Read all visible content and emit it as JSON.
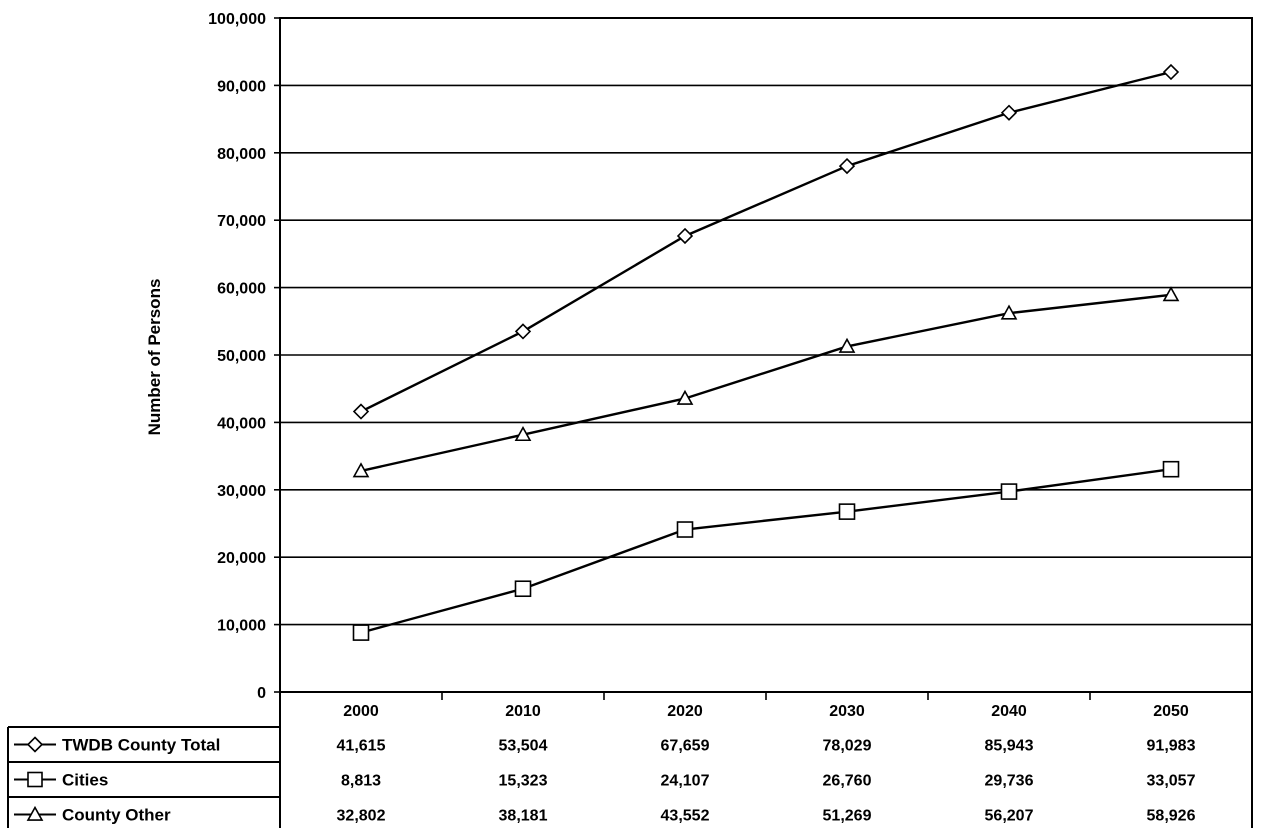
{
  "chart_data": {
    "type": "line",
    "title": "",
    "xlabel": "",
    "ylabel": "Number of Persons",
    "ylim": [
      0,
      100000
    ],
    "yticks": [
      "0",
      "10,000",
      "20,000",
      "30,000",
      "40,000",
      "50,000",
      "60,000",
      "70,000",
      "80,000",
      "90,000",
      "100,000"
    ],
    "ytick_values": [
      0,
      10000,
      20000,
      30000,
      40000,
      50000,
      60000,
      70000,
      80000,
      90000,
      100000
    ],
    "categories": [
      "2000",
      "2010",
      "2020",
      "2030",
      "2040",
      "2050"
    ],
    "grid": true,
    "legend": "data-table-below",
    "series": [
      {
        "name": "TWDB County Total",
        "marker": "diamond",
        "values": [
          41615,
          53504,
          67659,
          78029,
          85943,
          91983
        ],
        "labels": [
          "41,615",
          "53,504",
          "67,659",
          "78,029",
          "85,943",
          "91,983"
        ]
      },
      {
        "name": "Cities",
        "marker": "square",
        "values": [
          8813,
          15323,
          24107,
          26760,
          29736,
          33057
        ],
        "labels": [
          "8,813",
          "15,323",
          "24,107",
          "26,760",
          "29,736",
          "33,057"
        ]
      },
      {
        "name": "County Other",
        "marker": "triangle",
        "values": [
          32802,
          38181,
          43552,
          51269,
          56207,
          58926
        ],
        "labels": [
          "32,802",
          "38,181",
          "43,552",
          "51,269",
          "56,207",
          "58,926"
        ]
      }
    ]
  }
}
